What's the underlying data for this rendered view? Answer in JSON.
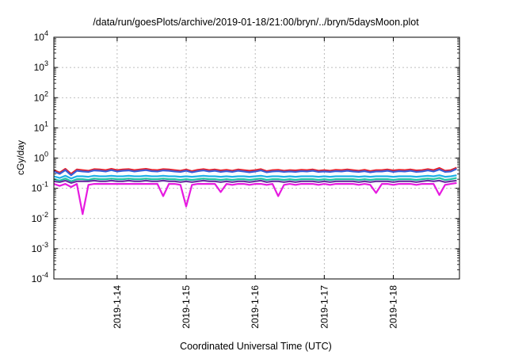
{
  "chart_data": {
    "type": "line",
    "title": "/data/run/goesPlots/archive/2019-01-18/21:00/bryn/../bryn/5daysMoon.plot",
    "xlabel": "Coordinated Universal Time (UTC)",
    "ylabel": "cGy/day",
    "yscale": "log",
    "ylim": [
      0.0001,
      10000
    ],
    "xlim": [
      "2019-01-13T02:00",
      "2019-01-18T23:00"
    ],
    "grid": true,
    "legend": "none",
    "x_ticks": [
      {
        "label": "2019-1-14",
        "date": "2019-01-14T00:00"
      },
      {
        "label": "2019-1-15",
        "date": "2019-01-15T00:00"
      },
      {
        "label": "2019-1-16",
        "date": "2019-01-16T00:00"
      },
      {
        "label": "2019-1-17",
        "date": "2019-01-17T00:00"
      },
      {
        "label": "2019-1-18",
        "date": "2019-01-18T00:00"
      }
    ],
    "y_ticks": [
      {
        "base": "10",
        "exp": "-4",
        "value": 0.0001
      },
      {
        "base": "10",
        "exp": "-3",
        "value": 0.001
      },
      {
        "base": "10",
        "exp": "-2",
        "value": 0.01
      },
      {
        "base": "10",
        "exp": "-1",
        "value": 0.1
      },
      {
        "base": "10",
        "exp": "0",
        "value": 1
      },
      {
        "base": "10",
        "exp": "1",
        "value": 10
      },
      {
        "base": "10",
        "exp": "2",
        "value": 100
      },
      {
        "base": "10",
        "exp": "3",
        "value": 1000
      },
      {
        "base": "10",
        "exp": "4",
        "value": 10000
      }
    ],
    "x": [
      "2019-01-13T02:00",
      "2019-01-13T04:00",
      "2019-01-13T06:00",
      "2019-01-13T08:00",
      "2019-01-13T10:00",
      "2019-01-13T12:00",
      "2019-01-13T14:00",
      "2019-01-13T16:00",
      "2019-01-13T18:00",
      "2019-01-13T20:00",
      "2019-01-13T22:00",
      "2019-01-14T00:00",
      "2019-01-14T02:00",
      "2019-01-14T04:00",
      "2019-01-14T06:00",
      "2019-01-14T08:00",
      "2019-01-14T10:00",
      "2019-01-14T12:00",
      "2019-01-14T14:00",
      "2019-01-14T16:00",
      "2019-01-14T18:00",
      "2019-01-14T20:00",
      "2019-01-14T22:00",
      "2019-01-15T00:00",
      "2019-01-15T02:00",
      "2019-01-15T04:00",
      "2019-01-15T06:00",
      "2019-01-15T08:00",
      "2019-01-15T10:00",
      "2019-01-15T12:00",
      "2019-01-15T14:00",
      "2019-01-15T16:00",
      "2019-01-15T18:00",
      "2019-01-15T20:00",
      "2019-01-15T22:00",
      "2019-01-16T00:00",
      "2019-01-16T02:00",
      "2019-01-16T04:00",
      "2019-01-16T06:00",
      "2019-01-16T08:00",
      "2019-01-16T10:00",
      "2019-01-16T12:00",
      "2019-01-16T14:00",
      "2019-01-16T16:00",
      "2019-01-16T18:00",
      "2019-01-16T20:00",
      "2019-01-16T22:00",
      "2019-01-17T00:00",
      "2019-01-17T02:00",
      "2019-01-17T04:00",
      "2019-01-17T06:00",
      "2019-01-17T08:00",
      "2019-01-17T10:00",
      "2019-01-17T12:00",
      "2019-01-17T14:00",
      "2019-01-17T16:00",
      "2019-01-17T18:00",
      "2019-01-17T20:00",
      "2019-01-17T22:00",
      "2019-01-18T00:00",
      "2019-01-18T02:00",
      "2019-01-18T04:00",
      "2019-01-18T06:00",
      "2019-01-18T08:00",
      "2019-01-18T10:00",
      "2019-01-18T12:00",
      "2019-01-18T14:00",
      "2019-01-18T16:00",
      "2019-01-18T18:00",
      "2019-01-18T20:00",
      "2019-01-18T22:00"
    ],
    "series": [
      {
        "color": "#e8202a",
        "values": [
          0.4,
          0.33,
          0.44,
          0.3,
          0.42,
          0.4,
          0.38,
          0.43,
          0.42,
          0.4,
          0.44,
          0.4,
          0.42,
          0.43,
          0.4,
          0.42,
          0.44,
          0.41,
          0.4,
          0.43,
          0.42,
          0.4,
          0.38,
          0.42,
          0.37,
          0.41,
          0.43,
          0.4,
          0.42,
          0.39,
          0.41,
          0.38,
          0.42,
          0.4,
          0.38,
          0.4,
          0.43,
          0.37,
          0.4,
          0.41,
          0.38,
          0.4,
          0.39,
          0.41,
          0.4,
          0.42,
          0.38,
          0.4,
          0.38,
          0.41,
          0.4,
          0.42,
          0.4,
          0.38,
          0.41,
          0.37,
          0.4,
          0.4,
          0.42,
          0.39,
          0.41,
          0.4,
          0.42,
          0.39,
          0.4,
          0.43,
          0.4,
          0.47,
          0.38,
          0.4,
          0.48
        ]
      },
      {
        "color": "#3a5fd9",
        "values": [
          0.36,
          0.3,
          0.4,
          0.27,
          0.38,
          0.36,
          0.35,
          0.39,
          0.38,
          0.36,
          0.4,
          0.36,
          0.38,
          0.39,
          0.36,
          0.38,
          0.4,
          0.37,
          0.36,
          0.39,
          0.38,
          0.36,
          0.35,
          0.38,
          0.34,
          0.37,
          0.39,
          0.36,
          0.38,
          0.35,
          0.37,
          0.35,
          0.38,
          0.36,
          0.34,
          0.36,
          0.39,
          0.34,
          0.36,
          0.37,
          0.35,
          0.36,
          0.35,
          0.37,
          0.36,
          0.38,
          0.35,
          0.36,
          0.35,
          0.37,
          0.36,
          0.38,
          0.36,
          0.35,
          0.37,
          0.34,
          0.36,
          0.36,
          0.38,
          0.35,
          0.37,
          0.36,
          0.38,
          0.35,
          0.36,
          0.39,
          0.36,
          0.42,
          0.35,
          0.36,
          0.44
        ]
      },
      {
        "color": "#1fb0e8",
        "values": [
          0.25,
          0.22,
          0.26,
          0.21,
          0.25,
          0.25,
          0.24,
          0.26,
          0.25,
          0.25,
          0.26,
          0.25,
          0.25,
          0.26,
          0.25,
          0.25,
          0.26,
          0.25,
          0.25,
          0.26,
          0.25,
          0.25,
          0.24,
          0.25,
          0.24,
          0.25,
          0.26,
          0.25,
          0.25,
          0.24,
          0.25,
          0.24,
          0.25,
          0.25,
          0.24,
          0.25,
          0.26,
          0.24,
          0.25,
          0.25,
          0.24,
          0.25,
          0.24,
          0.25,
          0.25,
          0.25,
          0.24,
          0.25,
          0.24,
          0.25,
          0.25,
          0.25,
          0.25,
          0.24,
          0.25,
          0.24,
          0.25,
          0.25,
          0.25,
          0.24,
          0.25,
          0.25,
          0.25,
          0.24,
          0.25,
          0.26,
          0.25,
          0.27,
          0.24,
          0.25,
          0.27
        ]
      },
      {
        "color": "#23c4a2",
        "values": [
          0.2,
          0.18,
          0.21,
          0.17,
          0.2,
          0.2,
          0.19,
          0.21,
          0.2,
          0.2,
          0.21,
          0.2,
          0.2,
          0.21,
          0.2,
          0.2,
          0.21,
          0.2,
          0.2,
          0.21,
          0.2,
          0.2,
          0.19,
          0.2,
          0.19,
          0.2,
          0.21,
          0.2,
          0.2,
          0.19,
          0.2,
          0.19,
          0.2,
          0.2,
          0.19,
          0.2,
          0.21,
          0.19,
          0.2,
          0.2,
          0.19,
          0.2,
          0.19,
          0.2,
          0.2,
          0.2,
          0.19,
          0.2,
          0.19,
          0.2,
          0.2,
          0.2,
          0.2,
          0.19,
          0.2,
          0.19,
          0.2,
          0.2,
          0.2,
          0.19,
          0.2,
          0.2,
          0.2,
          0.19,
          0.2,
          0.21,
          0.2,
          0.22,
          0.19,
          0.2,
          0.22
        ]
      },
      {
        "color": "#6b2fa0",
        "values": [
          0.17,
          0.16,
          0.18,
          0.15,
          0.17,
          0.17,
          0.17,
          0.18,
          0.17,
          0.17,
          0.18,
          0.17,
          0.17,
          0.18,
          0.17,
          0.17,
          0.18,
          0.17,
          0.17,
          0.18,
          0.17,
          0.17,
          0.16,
          0.17,
          0.16,
          0.17,
          0.18,
          0.17,
          0.17,
          0.16,
          0.17,
          0.16,
          0.17,
          0.17,
          0.16,
          0.17,
          0.18,
          0.16,
          0.17,
          0.17,
          0.16,
          0.17,
          0.16,
          0.17,
          0.17,
          0.17,
          0.16,
          0.17,
          0.16,
          0.17,
          0.17,
          0.17,
          0.17,
          0.16,
          0.17,
          0.16,
          0.17,
          0.17,
          0.17,
          0.16,
          0.17,
          0.17,
          0.17,
          0.16,
          0.17,
          0.18,
          0.17,
          0.18,
          0.16,
          0.17,
          0.18
        ]
      },
      {
        "color": "#e61be0",
        "values": [
          0.14,
          0.12,
          0.14,
          0.11,
          0.14,
          0.014,
          0.13,
          0.14,
          0.14,
          0.14,
          0.14,
          0.14,
          0.14,
          0.14,
          0.14,
          0.14,
          0.14,
          0.14,
          0.14,
          0.055,
          0.14,
          0.14,
          0.13,
          0.025,
          0.13,
          0.14,
          0.14,
          0.14,
          0.14,
          0.075,
          0.14,
          0.13,
          0.14,
          0.14,
          0.13,
          0.14,
          0.14,
          0.13,
          0.14,
          0.055,
          0.13,
          0.14,
          0.13,
          0.14,
          0.14,
          0.14,
          0.13,
          0.14,
          0.13,
          0.14,
          0.14,
          0.14,
          0.14,
          0.13,
          0.14,
          0.13,
          0.07,
          0.14,
          0.14,
          0.13,
          0.14,
          0.14,
          0.14,
          0.13,
          0.14,
          0.14,
          0.14,
          0.06,
          0.13,
          0.14,
          0.15
        ]
      }
    ]
  }
}
